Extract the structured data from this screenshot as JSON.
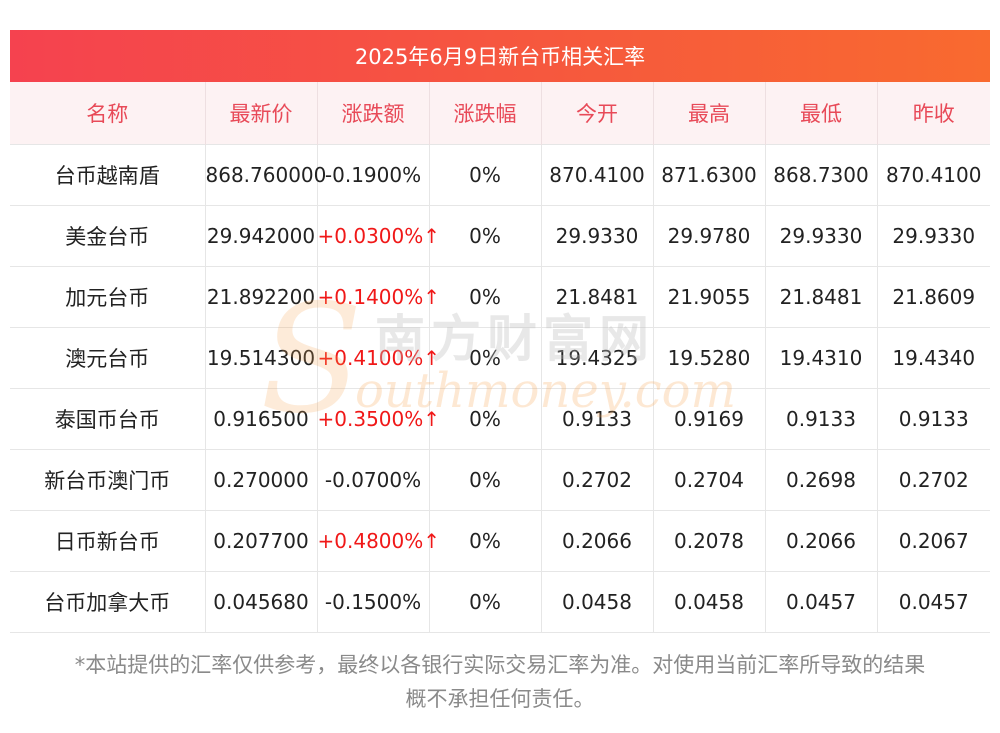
{
  "title": "2025年6月9日新台币相关汇率",
  "columns": [
    "名称",
    "最新价",
    "涨跌额",
    "涨跌幅",
    "今开",
    "最高",
    "最低",
    "昨收"
  ],
  "rows": [
    {
      "name": "台币越南盾",
      "latest": "868.760000",
      "change": "-0.1900%",
      "pct": "0%",
      "open": "870.4100",
      "high": "871.6300",
      "low": "868.7300",
      "prev": "870.4100",
      "up": false
    },
    {
      "name": "美金台币",
      "latest": "29.942000",
      "change": "+0.0300%↑",
      "pct": "0%",
      "open": "29.9330",
      "high": "29.9780",
      "low": "29.9330",
      "prev": "29.9330",
      "up": true
    },
    {
      "name": "加元台币",
      "latest": "21.892200",
      "change": "+0.1400%↑",
      "pct": "0%",
      "open": "21.8481",
      "high": "21.9055",
      "low": "21.8481",
      "prev": "21.8609",
      "up": true
    },
    {
      "name": "澳元台币",
      "latest": "19.514300",
      "change": "+0.4100%↑",
      "pct": "0%",
      "open": "19.4325",
      "high": "19.5280",
      "low": "19.4310",
      "prev": "19.4340",
      "up": true
    },
    {
      "name": "泰国币台币",
      "latest": "0.916500",
      "change": "+0.3500%↑",
      "pct": "0%",
      "open": "0.9133",
      "high": "0.9169",
      "low": "0.9133",
      "prev": "0.9133",
      "up": true
    },
    {
      "name": "新台币澳门币",
      "latest": "0.270000",
      "change": "-0.0700%",
      "pct": "0%",
      "open": "0.2702",
      "high": "0.2704",
      "low": "0.2698",
      "prev": "0.2702",
      "up": false
    },
    {
      "name": "日币新台币",
      "latest": "0.207700",
      "change": "+0.4800%↑",
      "pct": "0%",
      "open": "0.2066",
      "high": "0.2078",
      "low": "0.2066",
      "prev": "0.2067",
      "up": true
    },
    {
      "name": "台币加拿大币",
      "latest": "0.045680",
      "change": "-0.1500%",
      "pct": "0%",
      "open": "0.0458",
      "high": "0.0458",
      "low": "0.0457",
      "prev": "0.0457",
      "up": false
    }
  ],
  "watermark": {
    "letter": "S",
    "cn": "南方财富网",
    "en": "outhmoney.com"
  },
  "disclaimer": {
    "line1": "*本站提供的汇率仅供参考，最终以各银行实际交易汇率为准。对使用当前汇率所导致的结果",
    "line2": "概不承担任何责任。"
  },
  "colors": {
    "header_bg": "#f5424f",
    "header_text": "#e84a58",
    "up": "#f01818"
  }
}
